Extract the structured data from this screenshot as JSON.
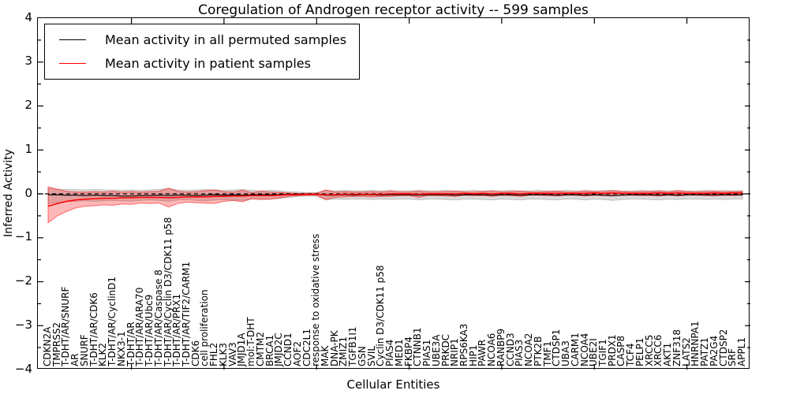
{
  "axes": {
    "xlabel": "Cellular Entities",
    "ylabel": "Inferred Activity",
    "ylim": [
      -4,
      4
    ],
    "ytick_values": [
      4,
      3,
      2,
      1,
      0,
      -1,
      -2,
      -3,
      -4
    ],
    "ytick_labels": [
      "4",
      "3",
      "2",
      "1",
      "0",
      "−1",
      "−2",
      "−3",
      "−4"
    ]
  },
  "legend": {
    "items": [
      {
        "label": "Mean activity in all permuted samples",
        "color": "#000000"
      },
      {
        "label": "Mean activity in patient samples",
        "color": "#ff0000"
      }
    ]
  },
  "chart_data": {
    "type": "line",
    "title": "Coregulation of Androgen receptor activity -- 599 samples",
    "xlabel": "Cellular Entities",
    "ylabel": "Inferred Activity",
    "ylim": [
      -4,
      4
    ],
    "grid": false,
    "legend_position": "upper left",
    "zero_line": {
      "y": 0,
      "style": "dashed",
      "color": "#000000"
    },
    "categories": [
      "CDKN2A",
      "TMPRSS2",
      "T-DHT/AR/SNURF",
      "AR",
      "SNURF",
      "T-DHT/AR/CDK6",
      "KLK2",
      "T-DHT/AR/CyclinD1",
      "NKX3-1",
      "T-DHT/AR",
      "T-DHT/AR/ARA70",
      "T-DHT/AR/Ubc9",
      "T-DHT/AR/Caspase 8",
      "T-DHT/AR/Cyclin D3/CDK11 p58",
      "T-DHT/AR/PRX1",
      "T-DHT/AR/TIF2/CARM1",
      "CDK6",
      "cell proliferation",
      "FHL2",
      "KLK3",
      "VAV3",
      "JMJD1A",
      "mol:T-DHT",
      "CMTM2",
      "BRCA1",
      "JMJD2C",
      "CCND1",
      "AOF2",
      "CDC2L1",
      "response to oxidative stress",
      "MAK",
      "DNA-PK",
      "ZMIZ1",
      "TGFB1I1",
      "GSN",
      "SVIL",
      "Cyclin D3/CDK11 p58",
      "PIAS4",
      "MED1",
      "FKBP4",
      "CTNNB1",
      "PIAS1",
      "UBE3A",
      "PRKDC",
      "NRIP1",
      "RPS6KA3",
      "HIP1",
      "PAWR",
      "NCOA6",
      "RANBP9",
      "CCND3",
      "PIAS3",
      "NCOA2",
      "PTK2B",
      "TMF1",
      "CTDSP1",
      "UBA3",
      "CARM1",
      "NCOA4",
      "UBE2I",
      "TGIF1",
      "PRDX1",
      "CASP8",
      "TCF4",
      "PELP1",
      "XRCC5",
      "XRCC6",
      "AKT1",
      "ZNF318",
      "LATS2",
      "HNRNPA1",
      "PATZ1",
      "PA2G4",
      "CTDSP2",
      "SRF",
      "APPL1"
    ],
    "series": [
      {
        "name": "Mean activity in all permuted samples",
        "color": "#000000",
        "band_fill": "rgba(0,0,0,0.14)",
        "band_edge": "rgba(0,0,0,0.18)",
        "values": [
          -0.02,
          -0.02,
          -0.03,
          -0.03,
          -0.04,
          -0.03,
          -0.04,
          -0.04,
          -0.05,
          -0.05,
          -0.04,
          -0.04,
          -0.03,
          -0.04,
          -0.03,
          -0.03,
          -0.04,
          -0.03,
          -0.02,
          -0.03,
          -0.02,
          -0.03,
          -0.02,
          -0.02,
          -0.02,
          -0.02,
          -0.01,
          -0.01,
          -0.01,
          -0.01,
          -0.03,
          -0.03,
          -0.02,
          -0.03,
          -0.02,
          -0.02,
          -0.03,
          -0.02,
          -0.02,
          -0.02,
          -0.03,
          -0.02,
          -0.02,
          -0.02,
          -0.03,
          -0.02,
          -0.02,
          -0.02,
          -0.03,
          -0.02,
          -0.02,
          -0.03,
          -0.02,
          -0.02,
          -0.02,
          -0.03,
          -0.02,
          -0.02,
          -0.03,
          -0.02,
          -0.03,
          -0.04,
          -0.03,
          -0.02,
          -0.02,
          -0.02,
          -0.03,
          -0.02,
          -0.03,
          -0.02,
          -0.02,
          -0.02,
          -0.02,
          -0.02,
          -0.02,
          -0.02
        ],
        "band_upper": [
          0.12,
          0.11,
          0.1,
          0.1,
          0.09,
          0.1,
          0.09,
          0.09,
          0.08,
          0.09,
          0.08,
          0.09,
          0.1,
          0.12,
          0.09,
          0.08,
          0.09,
          0.1,
          0.09,
          0.08,
          0.09,
          0.1,
          0.08,
          0.07,
          0.08,
          0.07,
          0.05,
          0.04,
          0.03,
          0.03,
          0.08,
          0.07,
          0.08,
          0.07,
          0.07,
          0.08,
          0.07,
          0.08,
          0.07,
          0.07,
          0.08,
          0.07,
          0.07,
          0.08,
          0.07,
          0.07,
          0.08,
          0.07,
          0.08,
          0.07,
          0.08,
          0.07,
          0.07,
          0.08,
          0.07,
          0.07,
          0.08,
          0.07,
          0.08,
          0.07,
          0.08,
          0.08,
          0.07,
          0.07,
          0.08,
          0.07,
          0.08,
          0.07,
          0.08,
          0.07,
          0.07,
          0.08,
          0.07,
          0.08,
          0.07,
          0.07
        ],
        "band_lower": [
          -0.22,
          -0.2,
          -0.18,
          -0.17,
          -0.16,
          -0.17,
          -0.16,
          -0.15,
          -0.16,
          -0.17,
          -0.15,
          -0.14,
          -0.15,
          -0.17,
          -0.14,
          -0.13,
          -0.15,
          -0.16,
          -0.14,
          -0.13,
          -0.14,
          -0.15,
          -0.12,
          -0.11,
          -0.12,
          -0.11,
          -0.08,
          -0.06,
          -0.05,
          -0.05,
          -0.14,
          -0.12,
          -0.13,
          -0.12,
          -0.12,
          -0.13,
          -0.12,
          -0.13,
          -0.12,
          -0.12,
          -0.14,
          -0.12,
          -0.12,
          -0.13,
          -0.14,
          -0.12,
          -0.12,
          -0.13,
          -0.14,
          -0.12,
          -0.13,
          -0.14,
          -0.12,
          -0.12,
          -0.13,
          -0.14,
          -0.12,
          -0.12,
          -0.14,
          -0.12,
          -0.13,
          -0.15,
          -0.13,
          -0.12,
          -0.12,
          -0.13,
          -0.14,
          -0.12,
          -0.13,
          -0.12,
          -0.12,
          -0.13,
          -0.12,
          -0.13,
          -0.12,
          -0.12
        ]
      },
      {
        "name": "Mean activity in patient samples",
        "color": "#ff0000",
        "band_fill": "rgba(255,0,0,0.28)",
        "band_edge": "rgba(255,0,0,0.55)",
        "values": [
          -0.28,
          -0.22,
          -0.17,
          -0.14,
          -0.12,
          -0.11,
          -0.1,
          -0.1,
          -0.09,
          -0.09,
          -0.08,
          -0.08,
          -0.08,
          -0.09,
          -0.08,
          -0.07,
          -0.07,
          -0.07,
          -0.06,
          -0.06,
          -0.05,
          -0.05,
          -0.04,
          -0.04,
          -0.04,
          -0.03,
          -0.02,
          -0.02,
          -0.01,
          -0.01,
          -0.02,
          -0.02,
          -0.01,
          -0.01,
          -0.01,
          -0.01,
          -0.01,
          0.0,
          0.0,
          0.0,
          -0.01,
          0.0,
          0.0,
          0.0,
          0.0,
          0.01,
          0.0,
          0.01,
          0.0,
          0.01,
          0.01,
          0.0,
          0.01,
          0.01,
          0.01,
          0.01,
          0.01,
          0.01,
          0.01,
          0.02,
          0.01,
          0.02,
          0.01,
          0.01,
          0.01,
          0.01,
          0.02,
          0.01,
          0.02,
          0.01,
          0.01,
          0.01,
          0.02,
          0.01,
          0.02,
          0.02
        ],
        "band_upper": [
          0.16,
          0.1,
          0.06,
          0.04,
          0.04,
          0.05,
          0.04,
          0.06,
          0.04,
          0.05,
          0.04,
          0.05,
          0.06,
          0.13,
          0.06,
          0.04,
          0.05,
          0.07,
          0.09,
          0.05,
          0.04,
          0.08,
          0.03,
          0.06,
          0.04,
          0.03,
          0.02,
          0.01,
          0.01,
          0.01,
          0.09,
          0.04,
          0.05,
          0.04,
          0.04,
          0.05,
          0.04,
          0.06,
          0.04,
          0.04,
          0.06,
          0.04,
          0.04,
          0.05,
          0.06,
          0.04,
          0.04,
          0.05,
          0.06,
          0.04,
          0.05,
          0.06,
          0.04,
          0.04,
          0.05,
          0.06,
          0.04,
          0.04,
          0.06,
          0.05,
          0.05,
          0.07,
          0.05,
          0.04,
          0.05,
          0.05,
          0.06,
          0.04,
          0.07,
          0.05,
          0.04,
          0.05,
          0.06,
          0.04,
          0.05,
          0.06
        ],
        "band_lower": [
          -0.66,
          -0.5,
          -0.4,
          -0.32,
          -0.28,
          -0.27,
          -0.25,
          -0.26,
          -0.23,
          -0.24,
          -0.21,
          -0.22,
          -0.21,
          -0.3,
          -0.22,
          -0.19,
          -0.2,
          -0.21,
          -0.22,
          -0.17,
          -0.15,
          -0.18,
          -0.11,
          -0.13,
          -0.12,
          -0.09,
          -0.06,
          -0.04,
          -0.03,
          -0.03,
          -0.13,
          -0.08,
          -0.07,
          -0.06,
          -0.06,
          -0.07,
          -0.06,
          -0.06,
          -0.04,
          -0.04,
          -0.08,
          -0.04,
          -0.04,
          -0.05,
          -0.06,
          -0.03,
          -0.04,
          -0.04,
          -0.06,
          -0.03,
          -0.04,
          -0.06,
          -0.03,
          -0.03,
          -0.04,
          -0.05,
          -0.03,
          -0.03,
          -0.05,
          -0.03,
          -0.04,
          -0.05,
          -0.03,
          -0.03,
          -0.04,
          -0.04,
          -0.05,
          -0.03,
          -0.05,
          -0.03,
          -0.03,
          -0.04,
          -0.05,
          -0.03,
          -0.04,
          -0.03
        ]
      }
    ]
  }
}
